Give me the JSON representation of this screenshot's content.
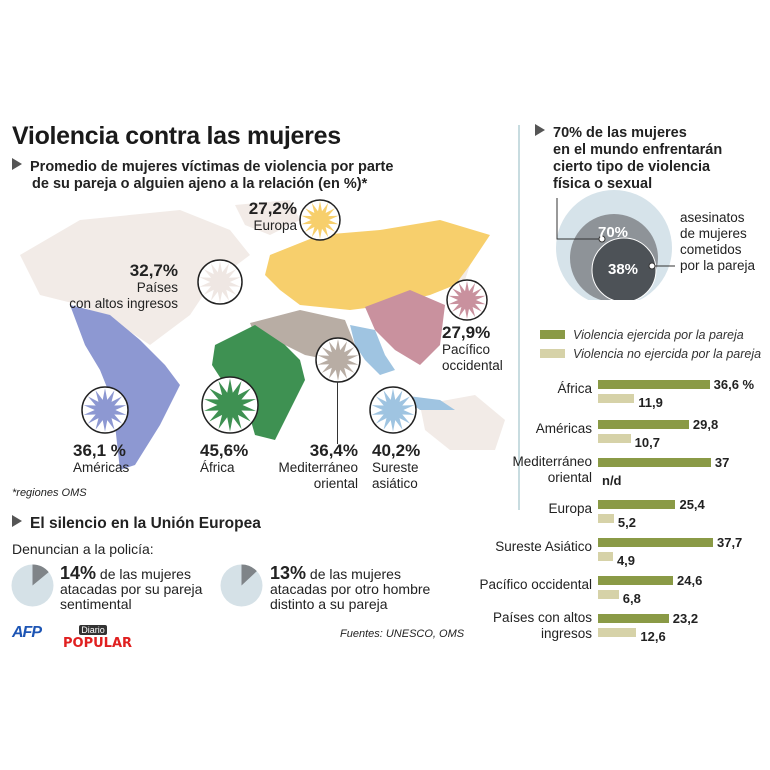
{
  "title": "Violencia contra las mujeres",
  "map": {
    "subtitle_line1": "Promedio de mujeres víctimas de violencia por parte",
    "subtitle_line2": "de su pareja o alguien ajeno a la relación (en %)*",
    "regions": [
      {
        "id": "europa",
        "value": "27,2%",
        "label1": "Europa",
        "label2": "",
        "color": "#f7cf6c"
      },
      {
        "id": "altos",
        "value": "32,7%",
        "label1": "Países",
        "label2": "con altos ingresos",
        "color": "#efe7e3"
      },
      {
        "id": "pacifico",
        "value": "27,9%",
        "label1": "Pacífico",
        "label2": "occidental",
        "color": "#c9919e"
      },
      {
        "id": "americas",
        "value": "36,1 %",
        "label1": "Américas",
        "label2": "",
        "color": "#8d98d2"
      },
      {
        "id": "africa",
        "value": "45,6%",
        "label1": "África",
        "label2": "",
        "color": "#3e9152"
      },
      {
        "id": "med",
        "value": "36,4%",
        "label1": "Mediterráneo",
        "label2": "oriental",
        "color": "#b8ada4"
      },
      {
        "id": "sureste",
        "value": "40,2%",
        "label1": "Sureste",
        "label2": "asiático",
        "color": "#9fc4e1"
      }
    ],
    "footnote": "*regiones OMS"
  },
  "world": {
    "headline_line1": "70% de las mujeres",
    "headline_line2": "en el mundo enfrentarán",
    "headline_line3": "cierto tipo de violencia",
    "headline_line4": "física o sexual",
    "outer_value": "70%",
    "inner_value": "38%",
    "inner_label_line1": "asesinatos",
    "inner_label_line2": "de mujeres",
    "inner_label_line3": "cometidos",
    "inner_label_line4": "por la pareja"
  },
  "chart_data": {
    "type": "bar",
    "orientation": "horizontal",
    "categories": [
      "África",
      "Américas",
      "Mediterráneo oriental",
      "Europa",
      "Sureste Asiático",
      "Pacífico occidental",
      "Países con altos ingresos"
    ],
    "series": [
      {
        "name": "Violencia ejercida por la pareja",
        "color": "#8a9a46",
        "values": [
          36.6,
          29.8,
          37,
          25.4,
          37.7,
          24.6,
          23.2
        ],
        "labels": [
          "36,6 %",
          "29,8",
          "37",
          "25,4",
          "37,7",
          "24,6",
          "23,2"
        ]
      },
      {
        "name": "Violencia no ejercida por la pareja",
        "color": "#d6d2a8",
        "values": [
          11.9,
          10.7,
          null,
          5.2,
          4.9,
          6.8,
          12.6
        ],
        "labels": [
          "11,9",
          "10,7",
          "n/d",
          "5,2",
          "4,9",
          "6,8",
          "12,6"
        ]
      }
    ],
    "unit": "%",
    "legend": "top"
  },
  "eu": {
    "heading": "El silencio en la Unión Europea",
    "intro": "Denuncian a la policía:",
    "stats": [
      {
        "value": "14%",
        "pct": 14,
        "line1": " de las mujeres",
        "line2": "atacadas por su pareja",
        "line3": "sentimental"
      },
      {
        "value": "13%",
        "pct": 13,
        "line1": " de las mujeres",
        "line2": "atacadas por otro hombre",
        "line3": "distinto a su pareja"
      }
    ]
  },
  "logos": {
    "afp": "AFP",
    "diario_top": "Diario",
    "diario_bottom": "POPULAR"
  },
  "sources": "Fuentes: UNESCO, OMS"
}
